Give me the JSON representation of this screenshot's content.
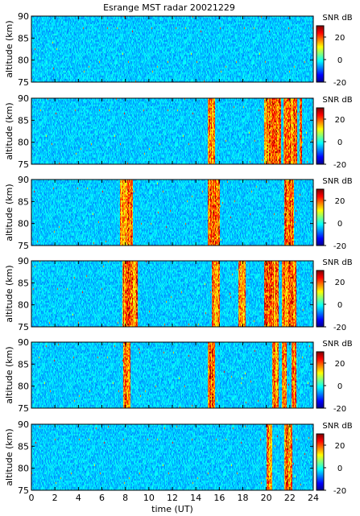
{
  "title": "Esrange MST radar 20021229",
  "colorbar_label": "SNR dB",
  "chart_data": {
    "type": "heatmap",
    "title": "Esrange MST radar 20021229",
    "xlabel": "time (UT)",
    "ylabel": "altitude (km)",
    "xlim": [
      0,
      24
    ],
    "ylim": [
      75,
      90
    ],
    "x_ticks": [
      0,
      2,
      4,
      6,
      8,
      10,
      12,
      14,
      16,
      18,
      20,
      22,
      24
    ],
    "y_ticks": [
      75,
      80,
      85,
      90
    ],
    "colorbar": {
      "label": "SNR dB",
      "range": [
        -20,
        30
      ],
      "ticks": [
        -20,
        0,
        20
      ]
    },
    "panels": [
      {
        "enhanced_intervals_UT": []
      },
      {
        "enhanced_intervals_UT": [
          [
            15.0,
            15.6
          ],
          [
            19.8,
            21.2
          ],
          [
            21.4,
            22.6
          ],
          [
            22.8,
            23.0
          ]
        ]
      },
      {
        "enhanced_intervals_UT": [
          [
            7.5,
            8.6
          ],
          [
            15.0,
            16.0
          ],
          [
            21.5,
            22.3
          ]
        ]
      },
      {
        "enhanced_intervals_UT": [
          [
            7.7,
            9.0
          ],
          [
            15.3,
            16.0
          ],
          [
            17.6,
            18.2
          ],
          [
            19.8,
            21.0
          ],
          [
            21.3,
            22.5
          ]
        ]
      },
      {
        "enhanced_intervals_UT": [
          [
            7.8,
            8.4
          ],
          [
            15.0,
            15.6
          ],
          [
            20.5,
            21.0
          ],
          [
            21.3,
            21.7
          ],
          [
            22.1,
            22.5
          ]
        ]
      },
      {
        "enhanced_intervals_UT": [
          [
            20.0,
            20.5
          ],
          [
            21.5,
            22.2
          ]
        ]
      }
    ]
  }
}
